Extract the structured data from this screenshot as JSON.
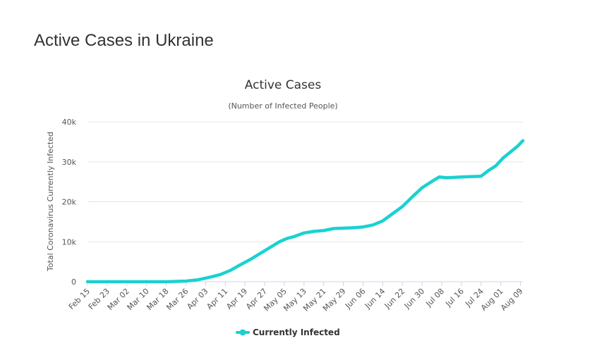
{
  "page": {
    "title": "Active Cases in Ukraine"
  },
  "chart_data": {
    "type": "line",
    "title": "Active Cases",
    "subtitle": "(Number of Infected People)",
    "xlabel": "",
    "ylabel": "Total Coronavirus Currently Infected",
    "ylim": [
      0,
      40000
    ],
    "yticks": [
      0,
      10000,
      20000,
      30000,
      40000
    ],
    "ytick_labels": [
      "0",
      "10k",
      "20k",
      "30k",
      "40k"
    ],
    "x_start": "Feb 15",
    "x_end": "Aug 10",
    "xtick_labels": [
      "Feb 15",
      "Feb 23",
      "Mar 02",
      "Mar 10",
      "Mar 18",
      "Mar 26",
      "Apr 03",
      "Apr 11",
      "Apr 19",
      "Apr 27",
      "May 05",
      "May 13",
      "May 21",
      "May 29",
      "Jun 06",
      "Jun 14",
      "Jun 22",
      "Jun 30",
      "Jul 08",
      "Jul 16",
      "Jul 24",
      "Aug 01",
      "Aug 09"
    ],
    "grid": true,
    "legend_position": "bottom-center",
    "series": [
      {
        "name": "Currently Infected",
        "color": "#1ad1d1",
        "x": [
          "Feb 15",
          "Mar 18",
          "Mar 26",
          "Mar 31",
          "Apr 03",
          "Apr 06",
          "Apr 09",
          "Apr 13",
          "Apr 17",
          "Apr 21",
          "Apr 25",
          "Apr 29",
          "May 03",
          "May 06",
          "May 09",
          "May 13",
          "May 17",
          "May 21",
          "May 25",
          "May 29",
          "Jun 02",
          "Jun 06",
          "Jun 10",
          "Jun 14",
          "Jun 18",
          "Jun 22",
          "Jun 26",
          "Jun 30",
          "Jul 04",
          "Jul 07",
          "Jul 10",
          "Jul 13",
          "Jul 16",
          "Jul 20",
          "Jul 24",
          "Jul 27",
          "Jul 30",
          "Aug 02",
          "Aug 05",
          "Aug 08",
          "Aug 10"
        ],
        "values": [
          0,
          0,
          150,
          500,
          900,
          1300,
          1800,
          2800,
          4200,
          5500,
          7000,
          8500,
          10000,
          10800,
          11300,
          12200,
          12600,
          12800,
          13300,
          13400,
          13500,
          13700,
          14200,
          15200,
          17000,
          18800,
          21200,
          23500,
          25100,
          26200,
          26000,
          26100,
          26200,
          26300,
          26400,
          27800,
          29000,
          31000,
          32500,
          34000,
          35300
        ]
      }
    ]
  }
}
